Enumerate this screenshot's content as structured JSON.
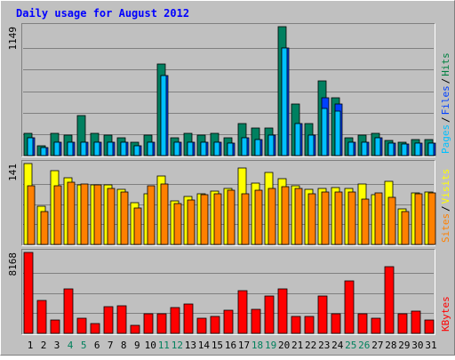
{
  "chart_data": {
    "type": "bar",
    "title": "Daily usage for August 2012",
    "categories": [
      "1",
      "2",
      "3",
      "4",
      "5",
      "6",
      "7",
      "8",
      "9",
      "10",
      "11",
      "12",
      "13",
      "14",
      "15",
      "16",
      "17",
      "18",
      "19",
      "20",
      "21",
      "22",
      "23",
      "24",
      "25",
      "26",
      "27",
      "28",
      "29",
      "30",
      "31"
    ],
    "weekend_days": [
      "4",
      "5",
      "11",
      "12",
      "18",
      "19",
      "25",
      "26"
    ],
    "panels": [
      {
        "id": "hits-files-pages",
        "ymax_label": "1149",
        "ymax": 1149,
        "legend": [
          {
            "text": "Pages",
            "color": "#00c0ff"
          },
          {
            "text": "Files",
            "color": "#0040ff"
          },
          {
            "text": "Hits",
            "color": "#008040"
          }
        ],
        "series": [
          {
            "name": "Hits",
            "color": "#008060",
            "values": [
              202,
              86,
              202,
              179,
              353,
              202,
              179,
              158,
              121,
              179,
              816,
              156,
              202,
              179,
              202,
              156,
              285,
              244,
              247,
              1149,
              458,
              285,
              669,
              516,
              156,
              179,
              202,
              134,
              121,
              140,
              140
            ]
          },
          {
            "name": "Files",
            "color": "#0040ff",
            "values": [
              156,
              68,
              121,
              121,
              121,
              121,
              121,
              115,
              85,
              121,
              714,
              115,
              121,
              121,
              121,
              110,
              156,
              140,
              179,
              955,
              285,
              179,
              519,
              458,
              121,
              121,
              158,
              110,
              102,
              110,
              110
            ]
          },
          {
            "name": "Pages",
            "color": "#00c0ff",
            "values": [
              156,
              68,
              121,
              121,
              121,
              121,
              121,
              115,
              85,
              121,
              714,
              115,
              121,
              121,
              121,
              110,
              156,
              140,
              179,
              955,
              285,
              179,
              419,
              393,
              121,
              121,
              158,
              110,
              102,
              110,
              110
            ]
          }
        ]
      },
      {
        "id": "visits-sites",
        "ymax_label": "141",
        "ymax": 141,
        "legend": [
          {
            "text": "Sites",
            "color": "#ff8000"
          },
          {
            "text": "Visits",
            "color": "#ffff00"
          }
        ],
        "series": [
          {
            "name": "Visits",
            "color": "#ffff00",
            "values": [
              141,
              66,
              128,
              116,
              104,
              104,
              104,
              96,
              73,
              88,
              119,
              76,
              83,
              89,
              93,
              97,
              133,
              107,
              126,
              114,
              103,
              96,
              98,
              99,
              98,
              105,
              86,
              110,
              62,
              90,
              92
            ]
          },
          {
            "name": "Sites",
            "color": "#ff8000",
            "values": [
              103,
              58,
              103,
              109,
              105,
              104,
              98,
              92,
              64,
              103,
              106,
              72,
              77,
              86,
              89,
              94,
              88,
              94,
              97,
              101,
              97,
              89,
              91,
              92,
              92,
              79,
              90,
              82,
              57,
              88,
              90
            ]
          }
        ]
      },
      {
        "id": "kbytes",
        "ymax_label": "8168",
        "ymax": 8168,
        "legend": [
          {
            "text": "KBytes",
            "color": "#ff0000"
          }
        ],
        "series": [
          {
            "name": "KBytes",
            "color": "#ff0000",
            "values": [
              8168,
              3350,
              1350,
              4500,
              1500,
              1000,
              2700,
              2800,
              800,
              2000,
              2000,
              2600,
              3000,
              1500,
              1700,
              2300,
              4300,
              2400,
              3750,
              4500,
              1700,
              1700,
              3750,
              2000,
              5300,
              2000,
              1500,
              6700,
              2000,
              2200,
              1350
            ]
          }
        ]
      }
    ]
  }
}
